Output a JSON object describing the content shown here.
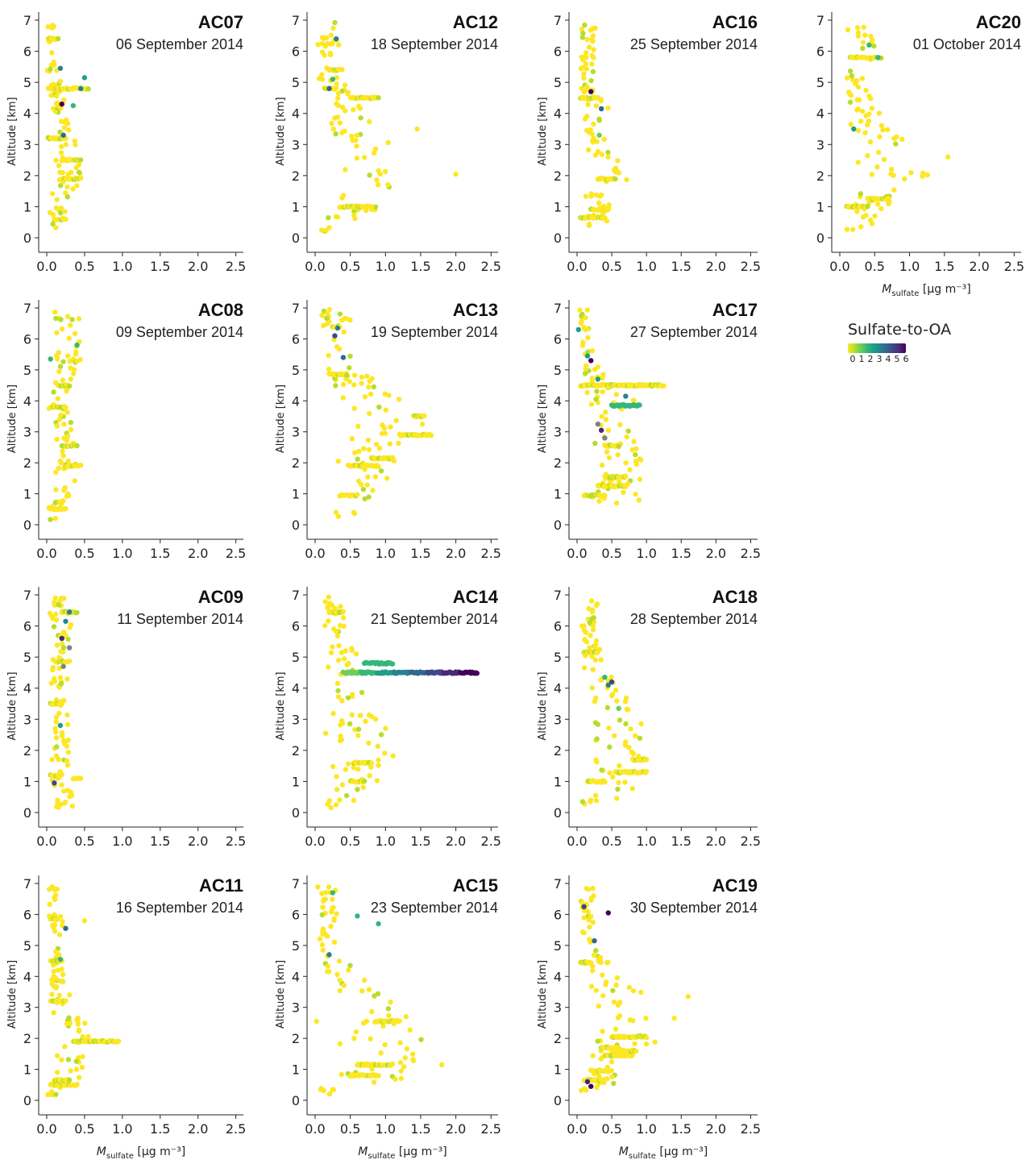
{
  "figure": {
    "ylabel": "Altitude [km]",
    "xlabel_symbol": "M",
    "xlabel_subscript": "sulfate",
    "xlabel_units": "[µg m⁻³]",
    "xticks": [
      "0.0",
      "0.5",
      "1.0",
      "1.5",
      "2.0",
      "2.5"
    ],
    "yticks": [
      "0",
      "1",
      "2",
      "3",
      "4",
      "5",
      "6",
      "7"
    ],
    "colors": {
      "viridis": [
        "#fde725",
        "#b5de2b",
        "#6ece58",
        "#35b779",
        "#1f9e89",
        "#26828e",
        "#31688e",
        "#3e4989",
        "#482878",
        "#440154"
      ],
      "grey": "#808080",
      "axis": "#222222"
    }
  },
  "legend": {
    "title": "Sulfate-to-OA",
    "ticks": [
      "0",
      "1",
      "2",
      "3",
      "4",
      "5",
      "6"
    ]
  },
  "chart_data": [
    {
      "type": "scatter",
      "flight": "AC07",
      "date": "06 September 2014",
      "xlim": [
        0,
        2.6
      ],
      "ylim": [
        0,
        7
      ],
      "profile": [
        [
          0.2,
          0.08
        ],
        [
          1.0,
          0.15
        ],
        [
          2.0,
          0.3
        ],
        [
          3.0,
          0.25
        ],
        [
          4.0,
          0.15
        ],
        [
          5.0,
          0.1
        ],
        [
          6.0,
          0.08
        ],
        [
          7.0,
          0.05
        ]
      ],
      "layers": [
        [
          0.6,
          0.1,
          0.25
        ],
        [
          1.9,
          0.2,
          0.45
        ],
        [
          2.5,
          0.2,
          0.45
        ],
        [
          3.2,
          0.02,
          0.25
        ],
        [
          4.8,
          0.02,
          0.55
        ],
        [
          6.4,
          0.02,
          0.15
        ]
      ],
      "highlights": [
        [
          0.45,
          4.8,
          5
        ],
        [
          0.5,
          5.15,
          4
        ],
        [
          0.35,
          4.25,
          3
        ],
        [
          0.2,
          4.3,
          9
        ],
        [
          0.18,
          5.45,
          5
        ],
        [
          0.22,
          3.3,
          6
        ]
      ]
    },
    {
      "type": "scatter",
      "flight": "AC12",
      "date": "18 September 2014",
      "xlim": [
        0,
        2.6
      ],
      "ylim": [
        0,
        7
      ],
      "profile": [
        [
          0.5,
          0.4
        ],
        [
          1.0,
          0.65
        ],
        [
          2.0,
          0.8
        ],
        [
          3.0,
          0.7
        ],
        [
          4.0,
          0.45
        ],
        [
          5.0,
          0.25
        ],
        [
          6.0,
          0.2
        ],
        [
          7.0,
          0.18
        ]
      ],
      "layers": [
        [
          1.0,
          0.35,
          0.8
        ],
        [
          4.5,
          0.5,
          0.9
        ],
        [
          5.4,
          0.2,
          0.35
        ],
        [
          4.8,
          0.15,
          0.3
        ]
      ],
      "highlights": [
        [
          0.3,
          6.4,
          5
        ],
        [
          0.2,
          4.8,
          6
        ],
        [
          0.25,
          5.1,
          3
        ],
        [
          2.0,
          2.05,
          0
        ],
        [
          1.45,
          3.5,
          0
        ]
      ]
    },
    {
      "type": "scatter",
      "flight": "AC16",
      "date": "25 September 2014",
      "xlim": [
        0,
        2.6
      ],
      "ylim": [
        0,
        7
      ],
      "profile": [
        [
          0.5,
          0.3
        ],
        [
          1.0,
          0.35
        ],
        [
          2.0,
          0.45
        ],
        [
          3.0,
          0.3
        ],
        [
          4.0,
          0.3
        ],
        [
          5.0,
          0.15
        ],
        [
          6.0,
          0.15
        ],
        [
          7.0,
          0.15
        ]
      ],
      "layers": [
        [
          0.65,
          0.05,
          0.4
        ],
        [
          0.9,
          0.2,
          0.45
        ],
        [
          1.9,
          0.3,
          0.55
        ],
        [
          4.5,
          0.05,
          0.3
        ]
      ],
      "highlights": [
        [
          0.35,
          4.15,
          6
        ],
        [
          0.2,
          4.7,
          9
        ],
        [
          0.32,
          3.3,
          2
        ]
      ]
    },
    {
      "type": "scatter",
      "flight": "AC20",
      "date": "01 October 2014",
      "xlim": [
        0,
        2.6
      ],
      "ylim": [
        0,
        7
      ],
      "profile": [
        [
          0.3,
          0.3
        ],
        [
          1.0,
          0.45
        ],
        [
          2.0,
          0.8
        ],
        [
          3.0,
          0.6
        ],
        [
          4.0,
          0.35
        ],
        [
          5.0,
          0.25
        ],
        [
          6.0,
          0.4
        ],
        [
          7.0,
          0.2
        ]
      ],
      "layers": [
        [
          1.0,
          0.1,
          0.4
        ],
        [
          1.25,
          0.4,
          0.7
        ],
        [
          5.8,
          0.15,
          0.55
        ]
      ],
      "highlights": [
        [
          0.2,
          3.5,
          4
        ],
        [
          0.42,
          6.2,
          3
        ],
        [
          0.55,
          5.8,
          3
        ],
        [
          1.55,
          2.6,
          0
        ]
      ]
    },
    {
      "type": "scatter",
      "flight": "AC08",
      "date": "09 September 2014",
      "xlim": [
        0,
        2.6
      ],
      "ylim": [
        0,
        7
      ],
      "profile": [
        [
          0.1,
          0.05
        ],
        [
          1.0,
          0.2
        ],
        [
          2.0,
          0.3
        ],
        [
          3.0,
          0.2
        ],
        [
          4.0,
          0.15
        ],
        [
          5.0,
          0.25
        ],
        [
          6.0,
          0.3
        ],
        [
          7.0,
          0.25
        ]
      ],
      "layers": [
        [
          0.5,
          0.05,
          0.25
        ],
        [
          1.9,
          0.25,
          0.45
        ],
        [
          2.55,
          0.2,
          0.4
        ],
        [
          3.8,
          0.05,
          0.25
        ],
        [
          4.5,
          0.15,
          0.3
        ]
      ],
      "highlights": [
        [
          0.05,
          5.35,
          3
        ],
        [
          0.4,
          5.8,
          3
        ]
      ]
    },
    {
      "type": "scatter",
      "flight": "AC13",
      "date": "19 September 2014",
      "xlim": [
        0,
        2.6
      ],
      "ylim": [
        0,
        7
      ],
      "profile": [
        [
          0.3,
          0.4
        ],
        [
          1.0,
          0.5
        ],
        [
          2.0,
          0.75
        ],
        [
          3.0,
          1.0
        ],
        [
          4.0,
          0.8
        ],
        [
          5.0,
          0.4
        ],
        [
          6.0,
          0.3
        ],
        [
          7.0,
          0.3
        ]
      ],
      "layers": [
        [
          0.95,
          0.35,
          0.6
        ],
        [
          1.9,
          0.5,
          0.9
        ],
        [
          2.15,
          0.8,
          1.1
        ],
        [
          2.9,
          1.2,
          1.65
        ],
        [
          3.5,
          1.4,
          1.55
        ],
        [
          4.85,
          0.2,
          0.45
        ],
        [
          6.4,
          0.25,
          0.35
        ]
      ],
      "highlights": [
        [
          0.28,
          6.1,
          7
        ],
        [
          0.4,
          5.4,
          6
        ],
        [
          0.32,
          6.35,
          5
        ]
      ]
    },
    {
      "type": "scatter",
      "flight": "AC17",
      "date": "27 September 2014",
      "xlim": [
        0,
        2.6
      ],
      "ylim": [
        0,
        7
      ],
      "profile": [
        [
          0.3,
          0.6
        ],
        [
          1.0,
          0.55
        ],
        [
          2.0,
          0.6
        ],
        [
          3.0,
          0.55
        ],
        [
          4.0,
          0.5
        ],
        [
          5.0,
          0.2
        ],
        [
          6.0,
          0.1
        ],
        [
          7.0,
          0.12
        ]
      ],
      "layers": [
        [
          0.95,
          0.1,
          0.4
        ],
        [
          1.25,
          0.3,
          0.7
        ],
        [
          1.55,
          0.4,
          0.7
        ],
        [
          2.55,
          0.4,
          0.6
        ],
        [
          3.85,
          0.5,
          0.9
        ],
        [
          4.5,
          0.05,
          1.25
        ]
      ],
      "highlights": [
        [
          0.2,
          5.3,
          9
        ],
        [
          0.15,
          5.45,
          4
        ],
        [
          0.3,
          3.25,
          10
        ],
        [
          0.4,
          2.8,
          10
        ],
        [
          0.35,
          3.05,
          8
        ],
        [
          0.7,
          4.15,
          5
        ],
        [
          0.3,
          4.7,
          4
        ],
        [
          0.02,
          6.3,
          4
        ]
      ]
    },
    {
      "type": "scatter",
      "flight": "AC09",
      "date": "11 September 2014",
      "xlim": [
        0,
        2.6
      ],
      "ylim": [
        0,
        7
      ],
      "profile": [
        [
          0.2,
          0.25
        ],
        [
          1.0,
          0.2
        ],
        [
          2.0,
          0.2
        ],
        [
          3.0,
          0.2
        ],
        [
          4.0,
          0.15
        ],
        [
          5.0,
          0.15
        ],
        [
          6.0,
          0.2
        ],
        [
          7.0,
          0.15
        ]
      ],
      "layers": [
        [
          1.1,
          0.35,
          0.45
        ],
        [
          1.2,
          0.05,
          0.2
        ],
        [
          3.5,
          0.05,
          0.2
        ],
        [
          5.7,
          0.15,
          0.25
        ],
        [
          4.85,
          0.15,
          0.3
        ],
        [
          6.45,
          0.2,
          0.4
        ]
      ],
      "highlights": [
        [
          0.3,
          6.45,
          5
        ],
        [
          0.3,
          5.3,
          10
        ],
        [
          0.2,
          5.6,
          8
        ],
        [
          0.1,
          0.95,
          7
        ],
        [
          0.18,
          2.8,
          4
        ],
        [
          0.22,
          4.7,
          10
        ],
        [
          0.25,
          6.15,
          5
        ]
      ]
    },
    {
      "type": "scatter",
      "flight": "AC14",
      "date": "21 September 2014",
      "xlim": [
        0,
        2.6
      ],
      "ylim": [
        0,
        7
      ],
      "profile": [
        [
          0.3,
          0.5
        ],
        [
          1.0,
          0.6
        ],
        [
          2.0,
          0.7
        ],
        [
          3.0,
          0.6
        ],
        [
          4.0,
          0.45
        ],
        [
          5.0,
          0.4
        ],
        [
          6.0,
          0.3
        ],
        [
          7.0,
          0.2
        ]
      ],
      "layers": [
        [
          1.0,
          0.5,
          0.7
        ],
        [
          1.6,
          0.55,
          0.8
        ],
        [
          6.45,
          0.2,
          0.4
        ],
        [
          4.5,
          0.4,
          2.3
        ],
        [
          4.8,
          0.7,
          1.1
        ]
      ],
      "highlights": [
        [
          0.15,
          2.55,
          0
        ],
        [
          0.3,
          0.25,
          0
        ]
      ]
    },
    {
      "type": "scatter",
      "flight": "AC18",
      "date": "28 September 2014",
      "xlim": [
        0,
        2.6
      ],
      "ylim": [
        0,
        7
      ],
      "profile": [
        [
          0.4,
          0.55
        ],
        [
          1.0,
          0.5
        ],
        [
          2.0,
          0.7
        ],
        [
          3.0,
          0.55
        ],
        [
          4.0,
          0.4
        ],
        [
          5.0,
          0.25
        ],
        [
          6.0,
          0.2
        ],
        [
          7.0,
          0.2
        ]
      ],
      "layers": [
        [
          1.0,
          0.15,
          0.4
        ],
        [
          1.3,
          0.55,
          1.0
        ],
        [
          1.7,
          0.8,
          1.0
        ],
        [
          5.15,
          0.1,
          0.3
        ]
      ],
      "highlights": [
        [
          0.5,
          4.2,
          7
        ],
        [
          0.45,
          4.1,
          5
        ],
        [
          0.4,
          4.35,
          3
        ],
        [
          0.6,
          3.35,
          2
        ]
      ]
    },
    {
      "type": "scatter",
      "flight": "AC11",
      "date": "16 September 2014",
      "xlim": [
        0,
        2.6
      ],
      "ylim": [
        0,
        7
      ],
      "profile": [
        [
          0.4,
          0.2
        ],
        [
          1.0,
          0.3
        ],
        [
          2.0,
          0.4
        ],
        [
          3.0,
          0.2
        ],
        [
          4.0,
          0.15
        ],
        [
          5.0,
          0.15
        ],
        [
          6.0,
          0.12
        ],
        [
          7.0,
          0.1
        ]
      ],
      "layers": [
        [
          0.5,
          0.05,
          0.4
        ],
        [
          0.65,
          0.1,
          0.3
        ],
        [
          1.9,
          0.35,
          0.95
        ],
        [
          3.2,
          0.05,
          0.25
        ],
        [
          4.5,
          0.05,
          0.2
        ],
        [
          5.85,
          0.05,
          0.15
        ]
      ],
      "highlights": [
        [
          0.25,
          5.55,
          6
        ],
        [
          0.5,
          5.8,
          0
        ],
        [
          0.18,
          4.55,
          3
        ]
      ]
    },
    {
      "type": "scatter",
      "flight": "AC15",
      "date": "23 September 2014",
      "xlim": [
        0,
        2.6
      ],
      "ylim": [
        0,
        7
      ],
      "profile": [
        [
          0.5,
          0.8
        ],
        [
          1.0,
          0.85
        ],
        [
          2.0,
          0.95
        ],
        [
          3.0,
          0.8
        ],
        [
          4.0,
          0.4
        ],
        [
          5.0,
          0.15
        ],
        [
          6.0,
          0.2
        ],
        [
          7.0,
          0.15
        ]
      ],
      "layers": [
        [
          0.8,
          0.5,
          0.9
        ],
        [
          1.15,
          0.6,
          1.1
        ],
        [
          2.55,
          0.85,
          1.2
        ]
      ],
      "highlights": [
        [
          0.2,
          4.7,
          5
        ],
        [
          0.6,
          5.95,
          3
        ],
        [
          0.9,
          5.7,
          3
        ],
        [
          0.25,
          6.7,
          3
        ],
        [
          1.8,
          1.15,
          0
        ],
        [
          0.02,
          2.55,
          0
        ]
      ]
    },
    {
      "type": "scatter",
      "flight": "AC19",
      "date": "30 September 2014",
      "xlim": [
        0,
        2.6
      ],
      "ylim": [
        0,
        7
      ],
      "profile": [
        [
          0.4,
          0.3
        ],
        [
          1.0,
          0.4
        ],
        [
          2.0,
          0.75
        ],
        [
          3.0,
          0.8
        ],
        [
          4.0,
          0.45
        ],
        [
          5.0,
          0.15
        ],
        [
          6.0,
          0.15
        ],
        [
          7.0,
          0.15
        ]
      ],
      "layers": [
        [
          0.65,
          0.1,
          0.4
        ],
        [
          0.95,
          0.2,
          0.45
        ],
        [
          1.45,
          0.4,
          0.8
        ],
        [
          1.6,
          0.6,
          0.85
        ],
        [
          1.7,
          0.35,
          0.6
        ],
        [
          2.05,
          0.5,
          1.0
        ],
        [
          4.45,
          0.05,
          0.2
        ]
      ],
      "highlights": [
        [
          0.2,
          0.45,
          9
        ],
        [
          0.15,
          0.6,
          8
        ],
        [
          0.45,
          6.05,
          9
        ],
        [
          0.1,
          6.25,
          7
        ],
        [
          0.25,
          5.15,
          6
        ],
        [
          1.6,
          3.35,
          0
        ],
        [
          1.4,
          2.65,
          0
        ]
      ]
    }
  ]
}
